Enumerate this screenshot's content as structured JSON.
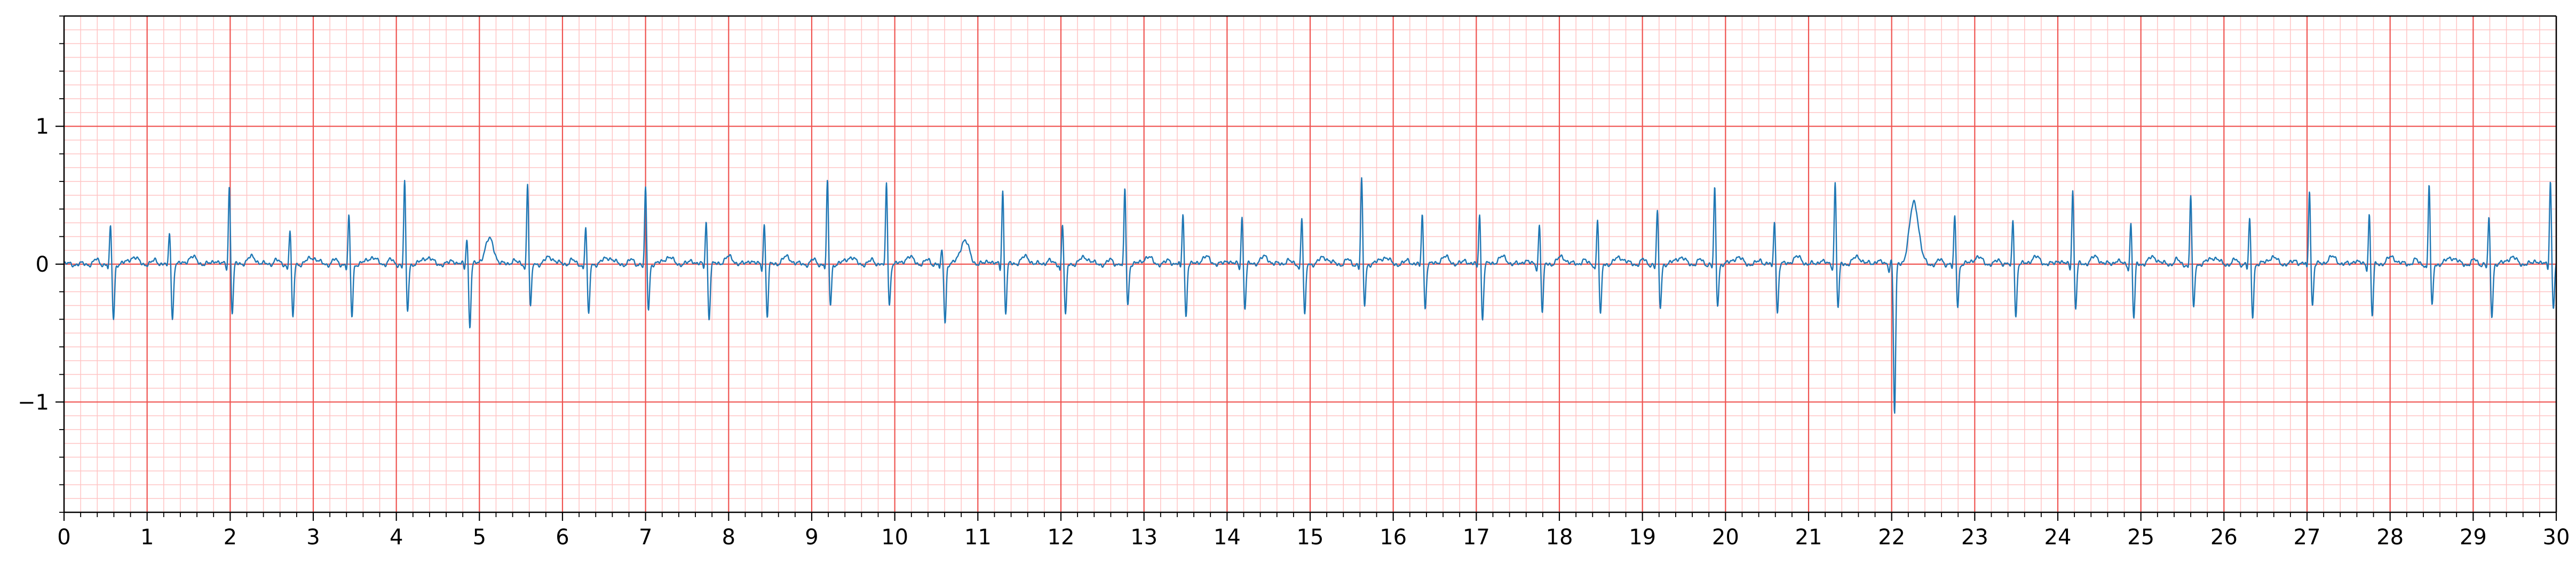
{
  "chart_data": {
    "type": "line",
    "title": "",
    "xlabel": "",
    "ylabel": "",
    "xlim": [
      0,
      30
    ],
    "ylim": [
      -1.8,
      1.8
    ],
    "x_ticks": [
      0,
      1,
      2,
      3,
      4,
      5,
      6,
      7,
      8,
      9,
      10,
      11,
      12,
      13,
      14,
      15,
      16,
      17,
      18,
      19,
      20,
      21,
      22,
      23,
      24,
      25,
      26,
      27,
      28,
      29,
      30
    ],
    "x_tick_labels": [
      "0",
      "1",
      "2",
      "3",
      "4",
      "5",
      "6",
      "7",
      "8",
      "9",
      "10",
      "11",
      "12",
      "13",
      "14",
      "15",
      "16",
      "17",
      "18",
      "19",
      "20",
      "21",
      "22",
      "23",
      "24",
      "25",
      "26",
      "27",
      "28",
      "29",
      "30"
    ],
    "y_ticks": [
      -1,
      0,
      1
    ],
    "y_tick_labels": [
      "−1",
      "0",
      "1"
    ],
    "grid": "ECG paper: major grid every 1 s / 1 unit, minor grid every 0.2 s / 0.1 unit",
    "grid_major_color": "#ef5350",
    "grid_minor_color": "#ffc4c4",
    "series": [
      {
        "color": "#1f77b4",
        "beats": [
          {
            "t": 0.56,
            "r": 0.27,
            "s": -0.4
          },
          {
            "t": 1.27,
            "r": 0.24,
            "s": -0.4
          },
          {
            "t": 1.99,
            "r": 0.58,
            "s": -0.35
          },
          {
            "t": 2.72,
            "r": 0.25,
            "s": -0.4
          },
          {
            "t": 3.43,
            "r": 0.35,
            "s": -0.38
          },
          {
            "t": 4.1,
            "r": 0.6,
            "s": -0.35
          },
          {
            "t": 4.85,
            "r": 0.2,
            "s": -0.45,
            "t_wave": 0.18
          },
          {
            "t": 5.58,
            "r": 0.6,
            "s": -0.32
          },
          {
            "t": 6.28,
            "r": 0.27,
            "s": -0.38
          },
          {
            "t": 7.0,
            "r": 0.55,
            "s": -0.33
          },
          {
            "t": 7.73,
            "r": 0.32,
            "s": -0.4
          },
          {
            "t": 8.43,
            "r": 0.3,
            "s": -0.38
          },
          {
            "t": 9.19,
            "r": 0.6,
            "s": -0.3
          },
          {
            "t": 9.9,
            "r": 0.6,
            "s": -0.3
          },
          {
            "t": 10.57,
            "r": 0.1,
            "s": -0.42,
            "t_wave": 0.17
          },
          {
            "t": 11.3,
            "r": 0.55,
            "s": -0.35
          },
          {
            "t": 12.02,
            "r": 0.3,
            "s": -0.38
          },
          {
            "t": 12.77,
            "r": 0.55,
            "s": -0.3
          },
          {
            "t": 13.47,
            "r": 0.38,
            "s": -0.38
          },
          {
            "t": 14.18,
            "r": 0.35,
            "s": -0.32
          },
          {
            "t": 14.9,
            "r": 0.35,
            "s": -0.38
          },
          {
            "t": 15.62,
            "r": 0.62,
            "s": -0.3
          },
          {
            "t": 16.35,
            "r": 0.38,
            "s": -0.32
          },
          {
            "t": 17.04,
            "r": 0.38,
            "s": -0.4
          },
          {
            "t": 17.76,
            "r": 0.3,
            "s": -0.35
          },
          {
            "t": 18.46,
            "r": 0.33,
            "s": -0.38
          },
          {
            "t": 19.18,
            "r": 0.38,
            "s": -0.32
          },
          {
            "t": 19.87,
            "r": 0.55,
            "s": -0.3
          },
          {
            "t": 20.59,
            "r": 0.33,
            "s": -0.35
          },
          {
            "t": 21.32,
            "r": 0.6,
            "s": -0.32
          },
          {
            "t": 22.0,
            "r": 0.05,
            "s": -1.08,
            "t_wave": 0.45
          },
          {
            "t": 22.76,
            "r": 0.35,
            "s": -0.3
          },
          {
            "t": 23.46,
            "r": 0.33,
            "s": -0.38
          },
          {
            "t": 24.18,
            "r": 0.55,
            "s": -0.32
          },
          {
            "t": 24.88,
            "r": 0.3,
            "s": -0.4
          },
          {
            "t": 25.6,
            "r": 0.5,
            "s": -0.33
          },
          {
            "t": 26.31,
            "r": 0.33,
            "s": -0.38
          },
          {
            "t": 27.03,
            "r": 0.55,
            "s": -0.3
          },
          {
            "t": 27.75,
            "r": 0.37,
            "s": -0.38
          },
          {
            "t": 28.47,
            "r": 0.58,
            "s": -0.32
          },
          {
            "t": 29.19,
            "r": 0.33,
            "s": -0.38
          },
          {
            "t": 29.93,
            "r": 0.62,
            "s": -0.32
          }
        ]
      }
    ]
  }
}
